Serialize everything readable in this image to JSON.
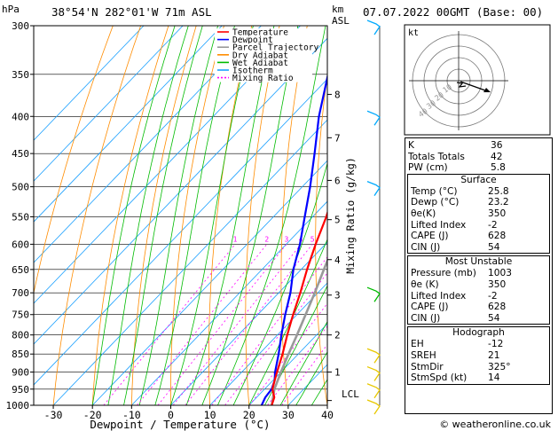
{
  "header": {
    "left_unit": "hPa",
    "location": "38°54'N  282°01'W  71m  ASL",
    "km_unit": "km",
    "asl_unit": "ASL",
    "datetime": "07.07.2022  00GMT  (Base: 00)"
  },
  "axes": {
    "xlabel": "Dewpoint / Temperature (°C)",
    "ylabel_right": "Mixing Ratio (g/kg)"
  },
  "legend": [
    "Temperature",
    "Dewpoint",
    "Parcel Trajectory",
    "Dry Adiabat",
    "Wet Adiabat",
    "Isotherm",
    "Mixing Ratio"
  ],
  "lcl_label": "LCL",
  "hodograph": {
    "unit_label": "kt",
    "ring_labels": [
      "10",
      "20",
      "30",
      "40"
    ]
  },
  "indices": [
    {
      "label": "K",
      "value": "36"
    },
    {
      "label": "Totals Totals",
      "value": "42"
    },
    {
      "label": "PW (cm)",
      "value": "5.8"
    }
  ],
  "surface": {
    "title": "Surface",
    "rows": [
      {
        "label": "Temp (°C)",
        "value": "25.8"
      },
      {
        "label": "Dewp (°C)",
        "value": "23.2"
      },
      {
        "label": "θe(K)",
        "value": "350"
      },
      {
        "label": "Lifted Index",
        "value": "-2"
      },
      {
        "label": "CAPE (J)",
        "value": "628"
      },
      {
        "label": "CIN (J)",
        "value": "54"
      }
    ]
  },
  "most_unstable": {
    "title": "Most Unstable",
    "rows": [
      {
        "label": "Pressure (mb)",
        "value": "1003"
      },
      {
        "label": "θe (K)",
        "value": "350"
      },
      {
        "label": "Lifted Index",
        "value": "-2"
      },
      {
        "label": "CAPE (J)",
        "value": "628"
      },
      {
        "label": "CIN (J)",
        "value": "54"
      }
    ]
  },
  "hodograph_table": {
    "title": "Hodograph",
    "rows": [
      {
        "label": "EH",
        "value": "-12"
      },
      {
        "label": "SREH",
        "value": "21"
      },
      {
        "label": "StmDir",
        "value": "325°"
      },
      {
        "label": "StmSpd (kt)",
        "value": "14"
      }
    ]
  },
  "footer": "© weatheronline.co.uk",
  "colors": {
    "temperature": "#ff0000",
    "dewpoint": "#0000ff",
    "parcel": "#999999",
    "dry_adiabat": "#ff8c00",
    "wet_adiabat": "#00bb00",
    "isotherm": "#1aa0ff",
    "mixing_ratio": "#ff00ff",
    "wind_barb": "#00aaff"
  },
  "chart_data": {
    "type": "line",
    "subtype": "skew-T log-P diagram",
    "xlim": [
      -35,
      40
    ],
    "ylim": [
      1000,
      300
    ],
    "x_ticks": [
      -30,
      -20,
      -10,
      0,
      10,
      20,
      30,
      40
    ],
    "pressure_ticks": [
      300,
      350,
      400,
      450,
      500,
      550,
      600,
      650,
      700,
      750,
      800,
      850,
      900,
      950,
      1000
    ],
    "km_ticks": [
      {
        "label": "1",
        "p": 900
      },
      {
        "label": "2",
        "p": 800
      },
      {
        "label": "3",
        "p": 705
      },
      {
        "label": "4",
        "p": 630
      },
      {
        "label": "5",
        "p": 555
      },
      {
        "label": "6",
        "p": 490
      },
      {
        "label": "7",
        "p": 428
      },
      {
        "label": "8",
        "p": 373
      }
    ],
    "mixing_ratio_labels": [
      1,
      2,
      3,
      4,
      5,
      8,
      10,
      15,
      20,
      25
    ],
    "series": [
      {
        "name": "Temperature",
        "p": [
          1000,
          975,
          950,
          925,
          900,
          850,
          800,
          750,
          700,
          650,
          600,
          550,
          500,
          450,
          400,
          350
        ],
        "t": [
          25.8,
          24.5,
          22,
          20.5,
          19,
          16,
          12.5,
          9,
          5.5,
          1.5,
          -2.5,
          -6.5,
          -11.5,
          -17,
          -24,
          -31
        ]
      },
      {
        "name": "Dewpoint",
        "p": [
          1000,
          975,
          950,
          925,
          900,
          850,
          800,
          750,
          700,
          650,
          600,
          550,
          500,
          450,
          400,
          350
        ],
        "t": [
          23.2,
          22.2,
          21.8,
          20.5,
          18.5,
          15,
          11,
          7,
          3,
          -2,
          -6.5,
          -12,
          -18,
          -25,
          -33,
          -41
        ]
      },
      {
        "name": "Parcel Trajectory",
        "p": [
          1000,
          950,
          900,
          850,
          800,
          750,
          700,
          650,
          600,
          550,
          500,
          450,
          400,
          350
        ],
        "t": [
          25.8,
          22.5,
          20,
          17.5,
          15,
          12.2,
          9.2,
          5.8,
          2.2,
          -1.8,
          -6.2,
          -11.5,
          -17.5,
          -24.5
        ]
      }
    ],
    "wind_barbs_p": [
      300,
      400,
      500,
      700,
      850,
      900,
      950,
      1000
    ]
  }
}
